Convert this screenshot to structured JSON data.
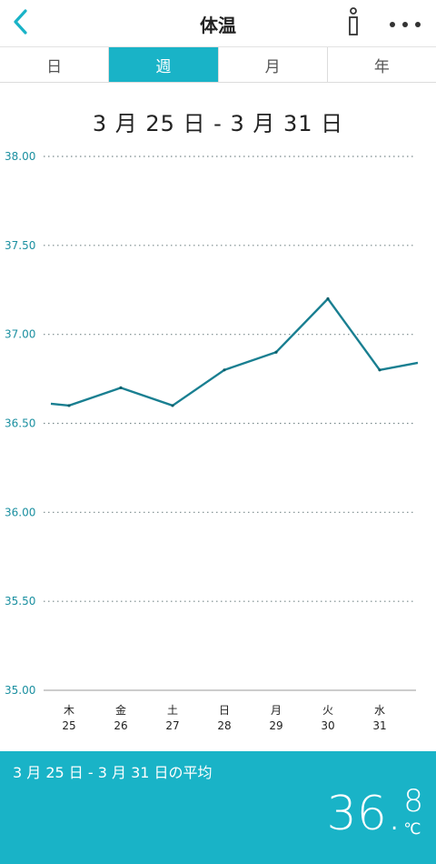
{
  "header": {
    "title": "体温",
    "back_icon": "chevron-left-icon",
    "info_icon": "info-icon",
    "more_icon": "more-horizontal-icon",
    "accent_color": "#19b3c7"
  },
  "tabs": [
    {
      "label": "日",
      "active": false
    },
    {
      "label": "週",
      "active": true
    },
    {
      "label": "月",
      "active": false
    },
    {
      "label": "年",
      "active": false
    }
  ],
  "range_label": "3 月 25 日 - 3 月 31 日",
  "chart_data": {
    "type": "line",
    "series": [
      {
        "values": [
          36.6,
          36.7,
          36.6,
          36.8,
          36.9,
          37.2,
          36.8
        ],
        "color": "#197f91"
      }
    ],
    "lead_in": 36.61,
    "lead_out": 36.84,
    "categories": [
      {
        "weekday": "木",
        "day": "25"
      },
      {
        "weekday": "金",
        "day": "26"
      },
      {
        "weekday": "土",
        "day": "27"
      },
      {
        "weekday": "日",
        "day": "28"
      },
      {
        "weekday": "月",
        "day": "29"
      },
      {
        "weekday": "火",
        "day": "30"
      },
      {
        "weekday": "水",
        "day": "31"
      }
    ],
    "y_ticks": [
      "38.00",
      "37.50",
      "37.00",
      "36.50",
      "36.00",
      "35.50",
      "35.00"
    ],
    "ylim": [
      35.0,
      38.0
    ],
    "grid": "dotted"
  },
  "footer": {
    "label": "3 月 25 日 - 3 月 31 日の平均",
    "avg_integer": "36.",
    "avg_decimal": "8",
    "unit": "℃"
  }
}
